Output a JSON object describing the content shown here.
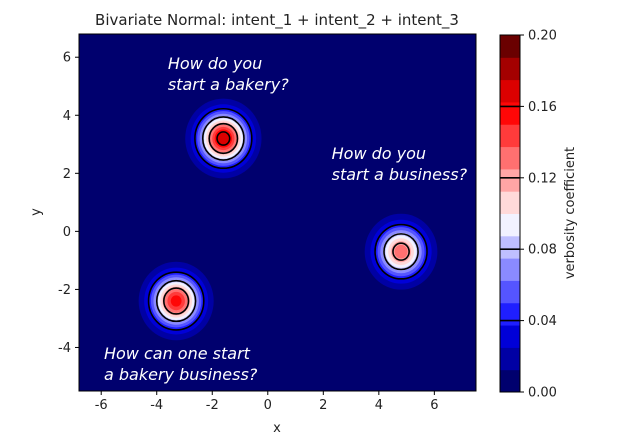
{
  "chart_data": {
    "type": "contour",
    "title": "Bivariate Normal: intent_1 + intent_2 + intent_3",
    "xlabel": "x",
    "ylabel": "y",
    "xlim": [
      -6.8,
      7.5
    ],
    "ylim": [
      -5.5,
      6.8
    ],
    "x_ticks": [
      -6,
      -4,
      -2,
      0,
      2,
      4,
      6
    ],
    "y_ticks": [
      -4,
      -2,
      0,
      2,
      4,
      6
    ],
    "levels": [
      0.0,
      0.0125,
      0.025,
      0.0375,
      0.05,
      0.0625,
      0.075,
      0.0875,
      0.1,
      0.1125,
      0.125,
      0.1375,
      0.15,
      0.1625,
      0.175,
      0.1875,
      0.2
    ],
    "level_colors": [
      "#00006e",
      "#0000a4",
      "#0000d8",
      "#1f1fff",
      "#5555ff",
      "#8a8aff",
      "#bfbfff",
      "#f2f2ff",
      "#ffd9d9",
      "#ffa5a5",
      "#ff7070",
      "#ff3b3b",
      "#ff0707",
      "#dc0000",
      "#a30000",
      "#6a0000"
    ],
    "contour_lines": [
      0.04,
      0.08,
      0.12,
      0.16
    ],
    "colorbar": {
      "label": "verbosity coefficient",
      "ticks": [
        "0.00",
        "0.04",
        "0.08",
        "0.12",
        "0.16",
        "0.20"
      ]
    },
    "peaks": [
      {
        "name": "intent_1",
        "center": [
          -1.6,
          3.2
        ],
        "peak": 0.172
      },
      {
        "name": "intent_2",
        "center": [
          4.8,
          -0.7
        ],
        "peak": 0.135
      },
      {
        "name": "intent_3",
        "center": [
          -3.3,
          -2.4
        ],
        "peak": 0.158
      }
    ],
    "annotations": [
      {
        "lines": [
          "How do you",
          "start a bakery?"
        ],
        "x": -3.6,
        "y": 5.6
      },
      {
        "lines": [
          "How do you",
          "start a business?"
        ],
        "x": 2.3,
        "y": 2.5
      },
      {
        "lines": [
          "How can one start",
          "a bakery business?"
        ],
        "x": -5.9,
        "y": -4.4
      }
    ]
  }
}
